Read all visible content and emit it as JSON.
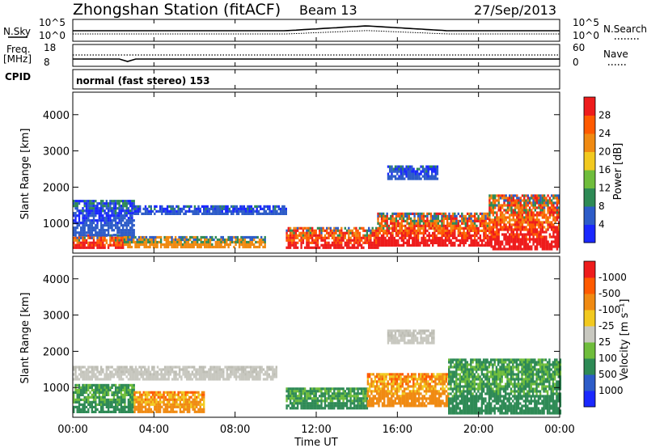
{
  "header": {
    "station": "Zhongshan Station (fitACF)",
    "beam": "Beam 13",
    "date": "27/Sep/2013"
  },
  "summary_panels": {
    "nsky_label": "N.Sky",
    "nsearch_label": "N.Search",
    "ylim_hi": "10^5",
    "ylim_lo": "10^0",
    "freq_label": "Freq.",
    "freq_unit": "[MHz]",
    "freq_hi": "18",
    "freq_lo": "8",
    "nave_label": "Nave",
    "nave_hi": "60",
    "nave_lo": "0",
    "cpid_label": "CPID",
    "cpid_value": "normal (fast stereo) 153"
  },
  "chart_data": [
    {
      "type": "heatmap",
      "panel": "power",
      "ylabel": "Slant Range [km]",
      "ylim": [
        180,
        4620
      ],
      "yticks": [
        "1000",
        "2000",
        "3000",
        "4000"
      ],
      "xlim_hours": [
        0,
        24
      ],
      "colorbar": {
        "label": "Power [dB]",
        "ticks": [
          "4",
          "8",
          "12",
          "16",
          "20",
          "24",
          "28"
        ],
        "colors": [
          "#1a28ff",
          "#2d5cc8",
          "#2e8a55",
          "#6fbd3c",
          "#f2c91f",
          "#f08a12",
          "#ff5a00",
          "#ee1c1c"
        ]
      },
      "echo_regions": [
        {
          "t0": 0.0,
          "t1": 2.5,
          "r0": 300,
          "r1": 700,
          "level": "strong"
        },
        {
          "t0": 0.0,
          "t1": 3.0,
          "r0": 700,
          "r1": 1650,
          "level": "weak"
        },
        {
          "t0": 2.5,
          "t1": 9.5,
          "r0": 350,
          "r1": 650,
          "level": "medium"
        },
        {
          "t0": 3.0,
          "t1": 10.5,
          "r0": 1250,
          "r1": 1500,
          "level": "weak"
        },
        {
          "t0": 10.5,
          "t1": 15.0,
          "r0": 350,
          "r1": 900,
          "level": "strong"
        },
        {
          "t0": 15.0,
          "t1": 20.5,
          "r0": 400,
          "r1": 1300,
          "level": "strong"
        },
        {
          "t0": 15.5,
          "t1": 18.0,
          "r0": 2200,
          "r1": 2600,
          "level": "weak"
        },
        {
          "t0": 20.5,
          "t1": 24.0,
          "r0": 300,
          "r1": 1800,
          "level": "strong"
        }
      ]
    },
    {
      "type": "heatmap",
      "panel": "velocity",
      "ylabel": "Slant Range [km]",
      "ylim": [
        180,
        4620
      ],
      "yticks": [
        "1000",
        "2000",
        "3000",
        "4000"
      ],
      "xlabel": "Time UT",
      "xticks": [
        "00:00",
        "04:00",
        "08:00",
        "12:00",
        "16:00",
        "20:00",
        "00:00"
      ],
      "xlim_hours": [
        0,
        24
      ],
      "colorbar": {
        "label": "Velocity [m s⁻¹]",
        "ticks": [
          "1000",
          "500",
          "100",
          "25",
          "-25",
          "-100",
          "-500",
          "-1000"
        ],
        "colors": [
          "#1a28ff",
          "#2d5cc8",
          "#2e8a55",
          "#6fbd3c",
          "#c8c8c0",
          "#f2c91f",
          "#f08a12",
          "#ff5a00",
          "#ee1c1c"
        ]
      },
      "echo_regions": [
        {
          "t0": 0.0,
          "t1": 3.0,
          "r0": 300,
          "r1": 1100,
          "level": "green"
        },
        {
          "t0": 0.0,
          "t1": 10.0,
          "r0": 1200,
          "r1": 1600,
          "level": "grey"
        },
        {
          "t0": 3.0,
          "t1": 6.5,
          "r0": 300,
          "r1": 900,
          "level": "orange"
        },
        {
          "t0": 10.5,
          "t1": 14.5,
          "r0": 400,
          "r1": 1000,
          "level": "green"
        },
        {
          "t0": 14.5,
          "t1": 18.5,
          "r0": 500,
          "r1": 1400,
          "level": "orange"
        },
        {
          "t0": 18.5,
          "t1": 24.0,
          "r0": 300,
          "r1": 1800,
          "level": "green"
        },
        {
          "t0": 15.5,
          "t1": 17.8,
          "r0": 2200,
          "r1": 2600,
          "level": "grey"
        }
      ]
    }
  ]
}
